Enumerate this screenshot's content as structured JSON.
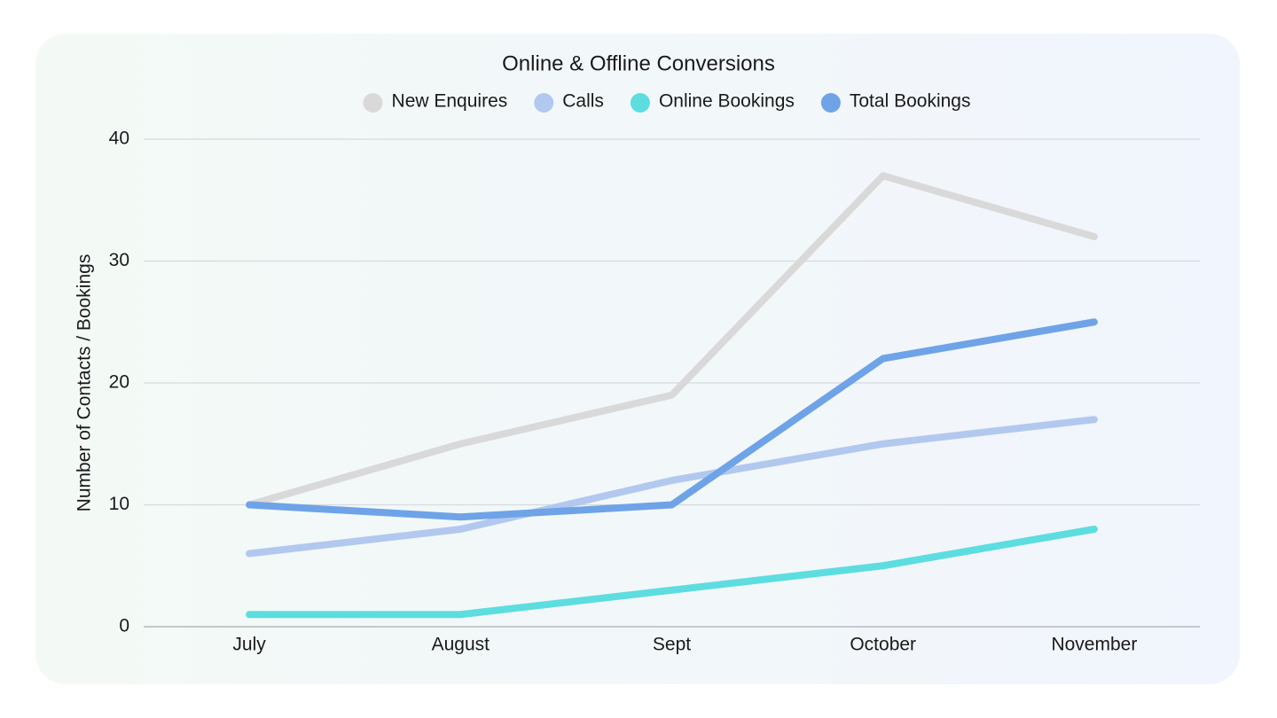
{
  "chart_data": {
    "type": "line",
    "title": "Online & Offline Conversions",
    "y_label": "Number of Contacts / Bookings",
    "categories": [
      "July",
      "August",
      "Sept",
      "October",
      "November"
    ],
    "series": [
      {
        "name": "New Enquires",
        "color": "#d9d9d9",
        "values": [
          10,
          15,
          19,
          37,
          32
        ]
      },
      {
        "name": "Calls",
        "color": "#b3c8ef",
        "values": [
          6,
          8,
          12,
          15,
          17
        ]
      },
      {
        "name": "Online Bookings",
        "color": "#5ddde0",
        "values": [
          1,
          1,
          3,
          5,
          8
        ]
      },
      {
        "name": "Total Bookings",
        "color": "#6fa3e8",
        "values": [
          10,
          9,
          10,
          22,
          25
        ]
      }
    ],
    "ylim": [
      0,
      40
    ],
    "yticks": [
      0,
      10,
      20,
      30,
      40
    ],
    "grid": true,
    "legend": "top"
  }
}
